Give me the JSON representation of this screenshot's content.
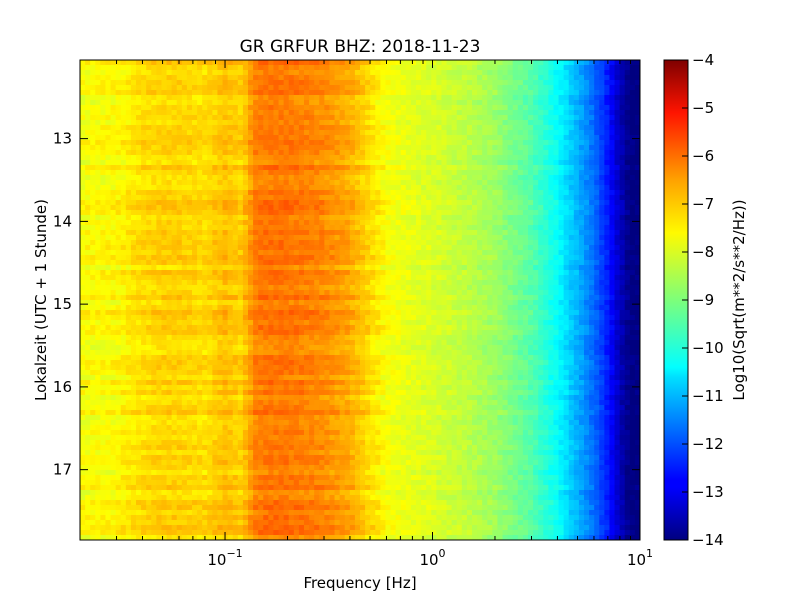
{
  "chart_data": {
    "type": "heatmap",
    "title": "GR GRFUR BHZ: 2018-11-23",
    "xlabel": "Frequency [Hz]",
    "ylabel": "Lokalzeit (UTC + 1 Stunde)",
    "x_scale": "log",
    "xlim": [
      0.02,
      10
    ],
    "ylim": [
      12.05,
      17.85
    ],
    "y_inverted": true,
    "x_ticks": [
      {
        "value": 0.1,
        "base": "10",
        "exp": "−1"
      },
      {
        "value": 1,
        "base": "10",
        "exp": "0"
      },
      {
        "value": 10,
        "base": "10",
        "exp": "1"
      }
    ],
    "y_ticks": [
      {
        "value": 13,
        "label": "13"
      },
      {
        "value": 14,
        "label": "14"
      },
      {
        "value": 15,
        "label": "15"
      },
      {
        "value": 16,
        "label": "16"
      },
      {
        "value": 17,
        "label": "17"
      }
    ],
    "colorbar": {
      "label": "Log10(Sqrt(m**2/s**2/Hz))",
      "range": [
        -14,
        -4
      ],
      "colormap": "jet",
      "ticks": [
        {
          "value": -4,
          "label": "−4"
        },
        {
          "value": -5,
          "label": "−5"
        },
        {
          "value": -6,
          "label": "−6"
        },
        {
          "value": -7,
          "label": "−7"
        },
        {
          "value": -8,
          "label": "−8"
        },
        {
          "value": -9,
          "label": "−9"
        },
        {
          "value": -10,
          "label": "−10"
        },
        {
          "value": -11,
          "label": "−11"
        },
        {
          "value": -12,
          "label": "−12"
        },
        {
          "value": -13,
          "label": "−13"
        },
        {
          "value": -14,
          "label": "−14"
        }
      ]
    },
    "mean_spectrum": {
      "frequency_hz": [
        0.02,
        0.03,
        0.04,
        0.05,
        0.06,
        0.08,
        0.1,
        0.12,
        0.14,
        0.16,
        0.2,
        0.25,
        0.3,
        0.4,
        0.5,
        0.6,
        0.8,
        1,
        1.5,
        2,
        3,
        4,
        5,
        6,
        7,
        8,
        9,
        10
      ],
      "psd": [
        -7.8,
        -7.7,
        -7.4,
        -7.3,
        -7.3,
        -7.4,
        -7.1,
        -7.3,
        -6.5,
        -6.4,
        -6.4,
        -6.5,
        -6.6,
        -6.9,
        -7.4,
        -7.8,
        -8.0,
        -8.1,
        -8.4,
        -8.7,
        -9.4,
        -10.2,
        -11.0,
        -11.7,
        -12.5,
        -13.4,
        -14.0,
        -14.0
      ]
    }
  }
}
